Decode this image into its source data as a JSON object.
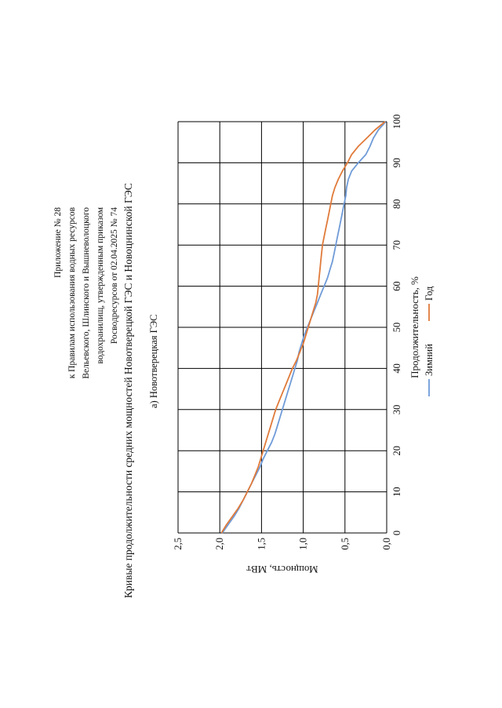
{
  "header": {
    "lines": [
      "Приложение № 28",
      "к Правилам использования водных ресурсов",
      "Вельевского, Шлинского и Вышневолоцкого",
      "водохранилищ, утвержденным приказом",
      "Росводресурсов от 02.04.2025 № 74"
    ]
  },
  "page_title": "Кривые продолжительности средних мощностей Новотверецкой ГЭС и Новоцнинской ГЭС",
  "chart_data": {
    "type": "line",
    "title": "а) Новотверецкая ГЭС",
    "xlabel": "Продолжительность, %",
    "ylabel": "Мощность, МВт",
    "xlim": [
      0,
      100
    ],
    "ylim": [
      0,
      2.5
    ],
    "x_ticks": [
      "0",
      "10",
      "20",
      "30",
      "40",
      "50",
      "60",
      "70",
      "80",
      "90",
      "100"
    ],
    "y_ticks": [
      "0,0",
      "0,5",
      "1,0",
      "1,5",
      "2,0",
      "2,5"
    ],
    "x_tick_values": [
      0,
      10,
      20,
      30,
      40,
      50,
      60,
      70,
      80,
      90,
      100
    ],
    "y_tick_values": [
      0,
      0.5,
      1.0,
      1.5,
      2.0,
      2.5
    ],
    "grid": true,
    "legend_position": "bottom",
    "series": [
      {
        "name": "Зимний",
        "color": "#6f9bd8",
        "x": [
          0,
          2,
          4,
          6,
          8,
          10,
          12,
          14,
          16,
          18,
          20,
          22,
          24,
          26,
          28,
          30,
          32,
          34,
          36,
          38,
          40,
          42,
          44,
          46,
          48,
          50,
          52,
          54,
          56,
          58,
          60,
          62,
          64,
          66,
          68,
          70,
          72,
          74,
          76,
          78,
          80,
          82,
          84,
          86,
          88,
          90,
          92,
          94,
          96,
          98,
          100
        ],
        "values": [
          1.97,
          1.9,
          1.83,
          1.77,
          1.72,
          1.67,
          1.62,
          1.57,
          1.52,
          1.48,
          1.43,
          1.38,
          1.34,
          1.31,
          1.28,
          1.25,
          1.22,
          1.19,
          1.16,
          1.13,
          1.1,
          1.07,
          1.05,
          1.02,
          0.99,
          0.95,
          0.91,
          0.87,
          0.83,
          0.79,
          0.75,
          0.71,
          0.68,
          0.65,
          0.63,
          0.61,
          0.59,
          0.57,
          0.55,
          0.53,
          0.51,
          0.49,
          0.48,
          0.46,
          0.42,
          0.34,
          0.25,
          0.2,
          0.16,
          0.1,
          0.01
        ]
      },
      {
        "name": "Год",
        "color": "#e07a3a",
        "x": [
          0,
          2,
          4,
          6,
          8,
          10,
          12,
          14,
          16,
          18,
          20,
          22,
          24,
          26,
          28,
          30,
          32,
          34,
          36,
          38,
          40,
          42,
          44,
          46,
          48,
          50,
          52,
          54,
          56,
          58,
          60,
          62,
          64,
          66,
          68,
          70,
          72,
          74,
          76,
          78,
          80,
          82,
          84,
          86,
          88,
          90,
          92,
          94,
          96,
          98,
          100
        ],
        "values": [
          1.98,
          1.92,
          1.85,
          1.78,
          1.72,
          1.67,
          1.62,
          1.58,
          1.54,
          1.51,
          1.48,
          1.45,
          1.42,
          1.39,
          1.36,
          1.33,
          1.29,
          1.25,
          1.21,
          1.17,
          1.13,
          1.08,
          1.04,
          1.0,
          0.97,
          0.94,
          0.91,
          0.88,
          0.85,
          0.83,
          0.82,
          0.81,
          0.8,
          0.79,
          0.78,
          0.77,
          0.75,
          0.73,
          0.71,
          0.69,
          0.67,
          0.65,
          0.62,
          0.58,
          0.53,
          0.47,
          0.42,
          0.34,
          0.24,
          0.14,
          0.02
        ]
      }
    ]
  }
}
